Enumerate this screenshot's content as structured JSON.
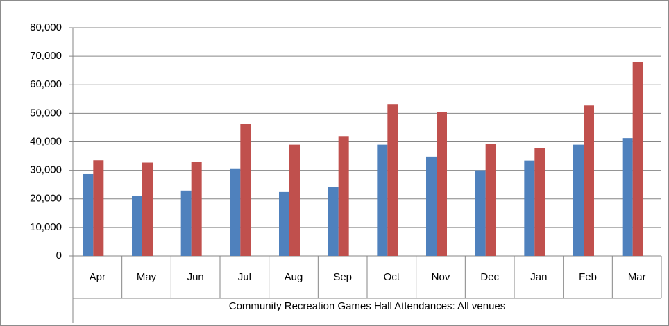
{
  "chart_data": {
    "type": "bar",
    "x_label": "Community Recreation Games Hall Attendances: All venues",
    "categories": [
      "Apr",
      "May",
      "Jun",
      "Jul",
      "Aug",
      "Sep",
      "Oct",
      "Nov",
      "Dec",
      "Jan",
      "Feb",
      "Mar"
    ],
    "series": [
      {
        "color": "#4f81bd",
        "values": [
          28700,
          21000,
          22900,
          30700,
          22400,
          24100,
          39000,
          34800,
          30000,
          33400,
          39000,
          41300
        ]
      },
      {
        "color": "#c0504d",
        "values": [
          33500,
          32700,
          33000,
          46200,
          39000,
          42000,
          53200,
          50500,
          39300,
          37800,
          52700,
          68000
        ]
      }
    ],
    "ylim": [
      0,
      80000
    ],
    "yticks": [
      0,
      {
        "value": 10000,
        "label": "10,000"
      },
      {
        "value": 20000,
        "label": "20,000"
      },
      {
        "value": 30000,
        "label": "30,000"
      },
      {
        "value": 40000,
        "label": "40,000"
      },
      {
        "value": 50000,
        "label": "50,000"
      },
      {
        "value": 60000,
        "label": "60,000"
      },
      {
        "value": 70000,
        "label": "70,000"
      },
      {
        "value": 80000,
        "label": "80,000"
      }
    ],
    "grid": true
  }
}
